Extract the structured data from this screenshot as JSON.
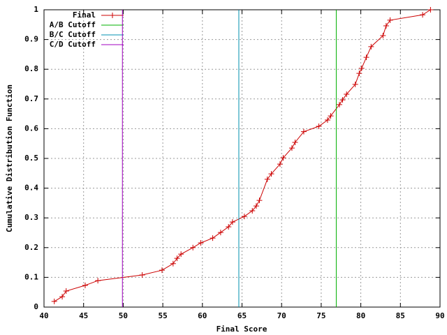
{
  "chart_data": {
    "type": "line",
    "xlabel": "Final Score",
    "ylabel": "Cumulative Distribution Function",
    "xlim": [
      40,
      90
    ],
    "xticks": [
      40,
      45,
      50,
      55,
      60,
      65,
      70,
      75,
      80,
      85,
      90
    ],
    "ylim": [
      0,
      1
    ],
    "yticks": [
      0,
      0.1,
      0.2,
      0.3,
      0.4,
      0.5,
      0.6,
      0.7,
      0.8,
      0.9,
      1
    ],
    "grid": true,
    "legend": "top-left",
    "series": [
      {
        "name": "Final",
        "color": "#cc0000",
        "marker": "+",
        "x": [
          41.3,
          42.3,
          42.8,
          45.2,
          46.8,
          52.4,
          54.9,
          56.3,
          56.8,
          57.3,
          58.8,
          59.8,
          61.3,
          62.3,
          63.3,
          63.8,
          65.3,
          66.3,
          66.8,
          67.2,
          68.2,
          68.7,
          69.8,
          70.2,
          71.3,
          71.7,
          72.8,
          74.7,
          75.8,
          76.2,
          77.3,
          77.7,
          78.2,
          79.3,
          79.8,
          80.1,
          80.7,
          81.3,
          82.8,
          83.2,
          83.7,
          87.8,
          88.8
        ],
        "values": [
          0.019,
          0.035,
          0.054,
          0.073,
          0.089,
          0.108,
          0.124,
          0.146,
          0.164,
          0.178,
          0.2,
          0.216,
          0.232,
          0.251,
          0.27,
          0.286,
          0.305,
          0.324,
          0.34,
          0.359,
          0.43,
          0.448,
          0.481,
          0.502,
          0.535,
          0.554,
          0.59,
          0.608,
          0.629,
          0.643,
          0.681,
          0.697,
          0.716,
          0.749,
          0.786,
          0.803,
          0.84,
          0.876,
          0.913,
          0.946,
          0.965,
          0.983,
          1
        ]
      },
      {
        "name": "A/B Cutoff",
        "color": "#00b000",
        "x": [
          76.9,
          76.9
        ],
        "values": [
          0,
          1
        ]
      },
      {
        "name": "B/C Cutoff",
        "color": "#0090b0",
        "x": [
          64.6,
          64.6
        ],
        "values": [
          0,
          1
        ]
      },
      {
        "name": "C/D Cutoff",
        "color": "#a000c0",
        "x": [
          49.9,
          49.9
        ],
        "values": [
          0,
          1
        ]
      }
    ]
  }
}
